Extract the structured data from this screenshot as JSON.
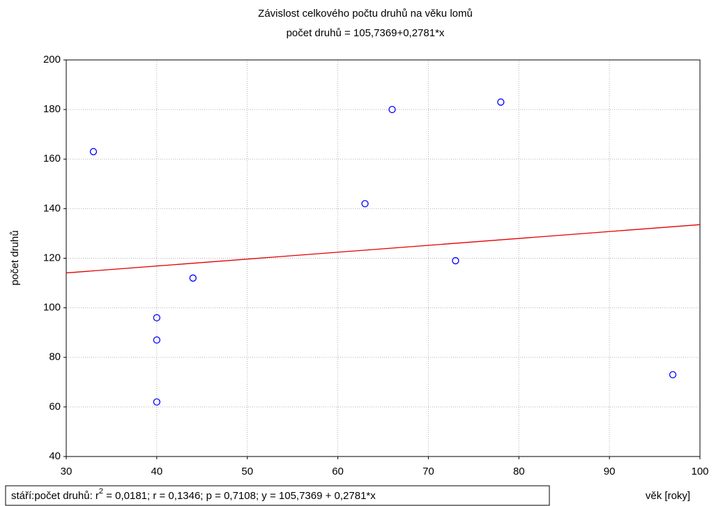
{
  "chart_data": {
    "type": "scatter",
    "title": "Závislost celkového počtu druhů na věku lomů",
    "subtitle": "počet druhů = 105,7369+0,2781*x",
    "x_label": "věk [roky]",
    "y_label": "počet druhů",
    "series": [
      {
        "name": "stáří:počet druhů",
        "color": "#0000ff",
        "x": [
          33,
          40,
          40,
          40,
          44,
          63,
          66,
          73,
          78,
          97
        ],
        "values": [
          163,
          96,
          87,
          62,
          112,
          142,
          180,
          119,
          183,
          73
        ]
      }
    ],
    "fit": {
      "intercept": 105.7369,
      "slope": 0.2781,
      "color": "#e00000"
    },
    "annotation": {
      "prefix": "stáří:počet druhů:  r",
      "sup": "2",
      "suffix": " = 0,0181;  r = 0,1346; p = 0,7108;  y = 105,7369 + 0,2781*x"
    },
    "xlim": [
      30,
      100
    ],
    "xticks": [
      30,
      40,
      50,
      60,
      70,
      80,
      90,
      100
    ],
    "ylim": [
      40,
      200
    ],
    "yticks": [
      40,
      60,
      80,
      100,
      120,
      140,
      160,
      180,
      200
    ],
    "grid": true
  }
}
